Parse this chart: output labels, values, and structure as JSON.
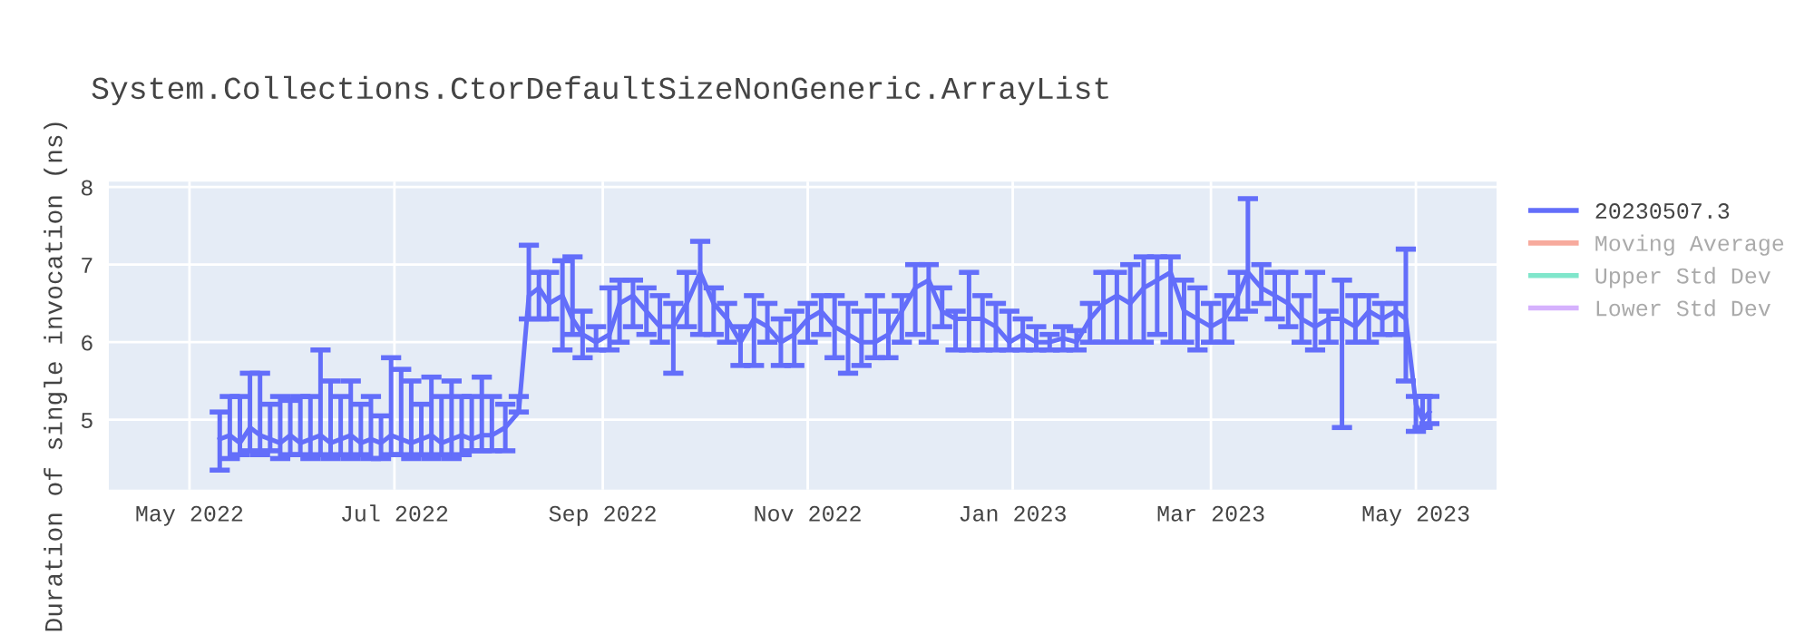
{
  "chart_data": {
    "type": "line",
    "title": "System.Collections.CtorDefaultSizeNonGeneric.ArrayList",
    "ylabel": "Duration of single invocation (ns)",
    "x": [
      "2022-05-10",
      "2022-05-13",
      "2022-05-16",
      "2022-05-19",
      "2022-05-22",
      "2022-05-25",
      "2022-05-28",
      "2022-05-31",
      "2022-06-03",
      "2022-06-06",
      "2022-06-09",
      "2022-06-12",
      "2022-06-15",
      "2022-06-18",
      "2022-06-21",
      "2022-06-24",
      "2022-06-27",
      "2022-06-30",
      "2022-07-03",
      "2022-07-06",
      "2022-07-09",
      "2022-07-12",
      "2022-07-15",
      "2022-07-18",
      "2022-07-21",
      "2022-07-24",
      "2022-07-27",
      "2022-07-30",
      "2022-08-03",
      "2022-08-07",
      "2022-08-10",
      "2022-08-13",
      "2022-08-16",
      "2022-08-20",
      "2022-08-23",
      "2022-08-26",
      "2022-08-30",
      "2022-09-03",
      "2022-09-06",
      "2022-09-10",
      "2022-09-14",
      "2022-09-18",
      "2022-09-22",
      "2022-09-26",
      "2022-09-30",
      "2022-10-04",
      "2022-10-08",
      "2022-10-12",
      "2022-10-16",
      "2022-10-20",
      "2022-10-24",
      "2022-10-28",
      "2022-11-01",
      "2022-11-05",
      "2022-11-09",
      "2022-11-13",
      "2022-11-17",
      "2022-11-21",
      "2022-11-25",
      "2022-11-29",
      "2022-12-03",
      "2022-12-07",
      "2022-12-11",
      "2022-12-15",
      "2022-12-19",
      "2022-12-23",
      "2022-12-27",
      "2022-12-31",
      "2023-01-04",
      "2023-01-08",
      "2023-01-12",
      "2023-01-16",
      "2023-01-20",
      "2023-01-24",
      "2023-01-28",
      "2023-02-01",
      "2023-02-05",
      "2023-02-09",
      "2023-02-13",
      "2023-02-17",
      "2023-02-21",
      "2023-02-25",
      "2023-03-01",
      "2023-03-05",
      "2023-03-09",
      "2023-03-12",
      "2023-03-16",
      "2023-03-20",
      "2023-03-24",
      "2023-03-28",
      "2023-04-01",
      "2023-04-05",
      "2023-04-09",
      "2023-04-13",
      "2023-04-17",
      "2023-04-21",
      "2023-04-25",
      "2023-04-28",
      "2023-05-01",
      "2023-05-03",
      "2023-05-05"
    ],
    "series": [
      {
        "name": "20230507.3",
        "color": "#636efa",
        "values": [
          4.75,
          4.8,
          4.7,
          4.9,
          4.8,
          4.75,
          4.7,
          4.8,
          4.7,
          4.75,
          4.8,
          4.7,
          4.75,
          4.8,
          4.7,
          4.75,
          4.7,
          4.8,
          4.75,
          4.7,
          4.75,
          4.8,
          4.7,
          4.75,
          4.8,
          4.75,
          4.8,
          4.8,
          4.9,
          5.1,
          6.6,
          6.7,
          6.5,
          6.6,
          6.3,
          6.1,
          6.0,
          6.1,
          6.5,
          6.6,
          6.4,
          6.2,
          6.2,
          6.5,
          6.9,
          6.5,
          6.3,
          6.0,
          6.3,
          6.2,
          6.0,
          6.1,
          6.3,
          6.4,
          6.2,
          6.1,
          6.0,
          6.0,
          6.1,
          6.4,
          6.7,
          6.8,
          6.4,
          6.3,
          6.3,
          6.3,
          6.2,
          6.0,
          6.1,
          6.0,
          6.0,
          6.05,
          6.0,
          6.3,
          6.5,
          6.6,
          6.5,
          6.7,
          6.8,
          6.9,
          6.4,
          6.3,
          6.2,
          6.3,
          6.6,
          6.9,
          6.7,
          6.6,
          6.5,
          6.3,
          6.2,
          6.3,
          6.3,
          6.2,
          6.4,
          6.3,
          6.4,
          6.3,
          5.2,
          5.0,
          5.1
        ],
        "errors": [
          [
            4.35,
            5.1
          ],
          [
            4.5,
            5.3
          ],
          [
            4.55,
            5.3
          ],
          [
            4.6,
            5.6
          ],
          [
            4.55,
            5.6
          ],
          [
            4.6,
            5.2
          ],
          [
            4.5,
            5.3
          ],
          [
            4.55,
            5.25
          ],
          [
            4.55,
            5.3
          ],
          [
            4.5,
            5.3
          ],
          [
            4.55,
            5.9
          ],
          [
            4.5,
            5.5
          ],
          [
            4.55,
            5.3
          ],
          [
            4.5,
            5.5
          ],
          [
            4.55,
            5.2
          ],
          [
            4.5,
            5.3
          ],
          [
            4.5,
            5.05
          ],
          [
            4.55,
            5.8
          ],
          [
            4.55,
            5.65
          ],
          [
            4.5,
            5.5
          ],
          [
            4.55,
            5.2
          ],
          [
            4.5,
            5.55
          ],
          [
            4.55,
            5.3
          ],
          [
            4.5,
            5.5
          ],
          [
            4.55,
            5.3
          ],
          [
            4.6,
            5.3
          ],
          [
            4.6,
            5.55
          ],
          [
            4.6,
            5.3
          ],
          [
            4.6,
            5.2
          ],
          [
            5.1,
            5.3
          ],
          [
            6.3,
            7.25
          ],
          [
            6.3,
            6.9
          ],
          [
            6.3,
            6.9
          ],
          [
            5.9,
            7.05
          ],
          [
            6.1,
            7.1
          ],
          [
            5.8,
            6.4
          ],
          [
            5.9,
            6.2
          ],
          [
            5.9,
            6.7
          ],
          [
            6.0,
            6.8
          ],
          [
            6.2,
            6.8
          ],
          [
            6.1,
            6.7
          ],
          [
            6.0,
            6.6
          ],
          [
            5.6,
            6.5
          ],
          [
            6.2,
            6.9
          ],
          [
            6.1,
            7.3
          ],
          [
            6.1,
            6.7
          ],
          [
            6.0,
            6.5
          ],
          [
            5.7,
            6.2
          ],
          [
            5.7,
            6.6
          ],
          [
            6.0,
            6.5
          ],
          [
            5.7,
            6.3
          ],
          [
            5.7,
            6.4
          ],
          [
            6.0,
            6.5
          ],
          [
            6.1,
            6.6
          ],
          [
            5.8,
            6.6
          ],
          [
            5.6,
            6.5
          ],
          [
            5.7,
            6.4
          ],
          [
            5.8,
            6.6
          ],
          [
            5.8,
            6.4
          ],
          [
            6.0,
            6.6
          ],
          [
            6.1,
            7.0
          ],
          [
            6.0,
            7.0
          ],
          [
            6.2,
            6.7
          ],
          [
            5.9,
            6.4
          ],
          [
            5.9,
            6.9
          ],
          [
            5.9,
            6.6
          ],
          [
            5.9,
            6.5
          ],
          [
            5.9,
            6.4
          ],
          [
            5.9,
            6.3
          ],
          [
            5.9,
            6.2
          ],
          [
            5.9,
            6.1
          ],
          [
            5.9,
            6.2
          ],
          [
            5.9,
            6.15
          ],
          [
            6.0,
            6.5
          ],
          [
            6.0,
            6.9
          ],
          [
            6.0,
            6.9
          ],
          [
            6.0,
            7.0
          ],
          [
            6.0,
            7.1
          ],
          [
            6.1,
            7.1
          ],
          [
            6.0,
            7.1
          ],
          [
            6.0,
            6.8
          ],
          [
            5.9,
            6.7
          ],
          [
            6.0,
            6.5
          ],
          [
            6.0,
            6.6
          ],
          [
            6.3,
            6.9
          ],
          [
            6.4,
            7.85
          ],
          [
            6.5,
            7.0
          ],
          [
            6.3,
            6.9
          ],
          [
            6.2,
            6.9
          ],
          [
            6.0,
            6.6
          ],
          [
            5.9,
            6.9
          ],
          [
            6.0,
            6.4
          ],
          [
            4.9,
            6.8
          ],
          [
            6.0,
            6.6
          ],
          [
            6.0,
            6.6
          ],
          [
            6.1,
            6.5
          ],
          [
            6.1,
            6.5
          ],
          [
            5.5,
            7.2
          ],
          [
            4.85,
            5.3
          ],
          [
            4.9,
            5.3
          ],
          [
            4.95,
            5.3
          ]
        ]
      },
      {
        "name": "Moving Average",
        "color": "#f7aa9d",
        "values": [
          null,
          null,
          null,
          null,
          null,
          null,
          null,
          null,
          null,
          null,
          null,
          null,
          null,
          null,
          null,
          null,
          null,
          null,
          null,
          null,
          null,
          null,
          null,
          null,
          null,
          null,
          null,
          null,
          null,
          null,
          null,
          null,
          null,
          null,
          null,
          null,
          null,
          null,
          null,
          null,
          null,
          null,
          null,
          null,
          null,
          null,
          null,
          null,
          null,
          null,
          null,
          null,
          null,
          null,
          null,
          null,
          null,
          null,
          null,
          null,
          null,
          null,
          null,
          null,
          null,
          null,
          null,
          null,
          null,
          null,
          null,
          null,
          null,
          null,
          null,
          null,
          null,
          null,
          null,
          null,
          null,
          null,
          null,
          null,
          null,
          null,
          null,
          null,
          null,
          null,
          null,
          null,
          null,
          null,
          null,
          null,
          null,
          null,
          null,
          null,
          null
        ]
      },
      {
        "name": "Upper Std Dev",
        "color": "#80e6cb",
        "values": [
          null,
          null,
          null,
          null,
          null,
          null,
          null,
          null,
          null,
          null,
          null,
          null,
          null,
          null,
          null,
          null,
          null,
          null,
          null,
          null,
          null,
          null,
          null,
          null,
          null,
          null,
          null,
          null,
          null,
          null,
          null,
          null,
          null,
          null,
          null,
          null,
          null,
          null,
          null,
          null,
          null,
          null,
          null,
          null,
          null,
          null,
          null,
          null,
          null,
          null,
          null,
          null,
          null,
          null,
          null,
          null,
          null,
          null,
          null,
          null,
          null,
          null,
          null,
          null,
          null,
          null,
          null,
          null,
          null,
          null,
          null,
          null,
          null,
          null,
          null,
          null,
          null,
          null,
          null,
          null,
          null,
          null,
          null,
          null,
          null,
          null,
          null,
          null,
          null,
          null,
          null,
          null,
          null,
          null,
          null,
          null,
          null,
          null,
          null,
          null,
          null
        ]
      },
      {
        "name": "Lower Std Dev",
        "color": "#d5b1fd",
        "values": [
          null,
          null,
          null,
          null,
          null,
          null,
          null,
          null,
          null,
          null,
          null,
          null,
          null,
          null,
          null,
          null,
          null,
          null,
          null,
          null,
          null,
          null,
          null,
          null,
          null,
          null,
          null,
          null,
          null,
          null,
          null,
          null,
          null,
          null,
          null,
          null,
          null,
          null,
          null,
          null,
          null,
          null,
          null,
          null,
          null,
          null,
          null,
          null,
          null,
          null,
          null,
          null,
          null,
          null,
          null,
          null,
          null,
          null,
          null,
          null,
          null,
          null,
          null,
          null,
          null,
          null,
          null,
          null,
          null,
          null,
          null,
          null,
          null,
          null,
          null,
          null,
          null,
          null,
          null,
          null,
          null,
          null,
          null,
          null,
          null,
          null,
          null,
          null,
          null,
          null,
          null,
          null,
          null,
          null,
          null,
          null,
          null,
          null,
          null,
          null,
          null
        ]
      }
    ],
    "xlim": [
      "2022-04-07",
      "2023-05-25"
    ],
    "xticks": [
      {
        "value": "2022-05-01",
        "label": "May 2022"
      },
      {
        "value": "2022-07-01",
        "label": "Jul 2022"
      },
      {
        "value": "2022-09-01",
        "label": "Sep 2022"
      },
      {
        "value": "2022-11-01",
        "label": "Nov 2022"
      },
      {
        "value": "2023-01-01",
        "label": "Jan 2023"
      },
      {
        "value": "2023-03-01",
        "label": "Mar 2023"
      },
      {
        "value": "2023-05-01",
        "label": "May 2023"
      }
    ],
    "ylim": [
      4.1,
      8.07
    ],
    "yticks": [
      5,
      6,
      7,
      8
    ],
    "grid": true,
    "legend": "top right",
    "marker": "none",
    "line_style": "solid"
  }
}
